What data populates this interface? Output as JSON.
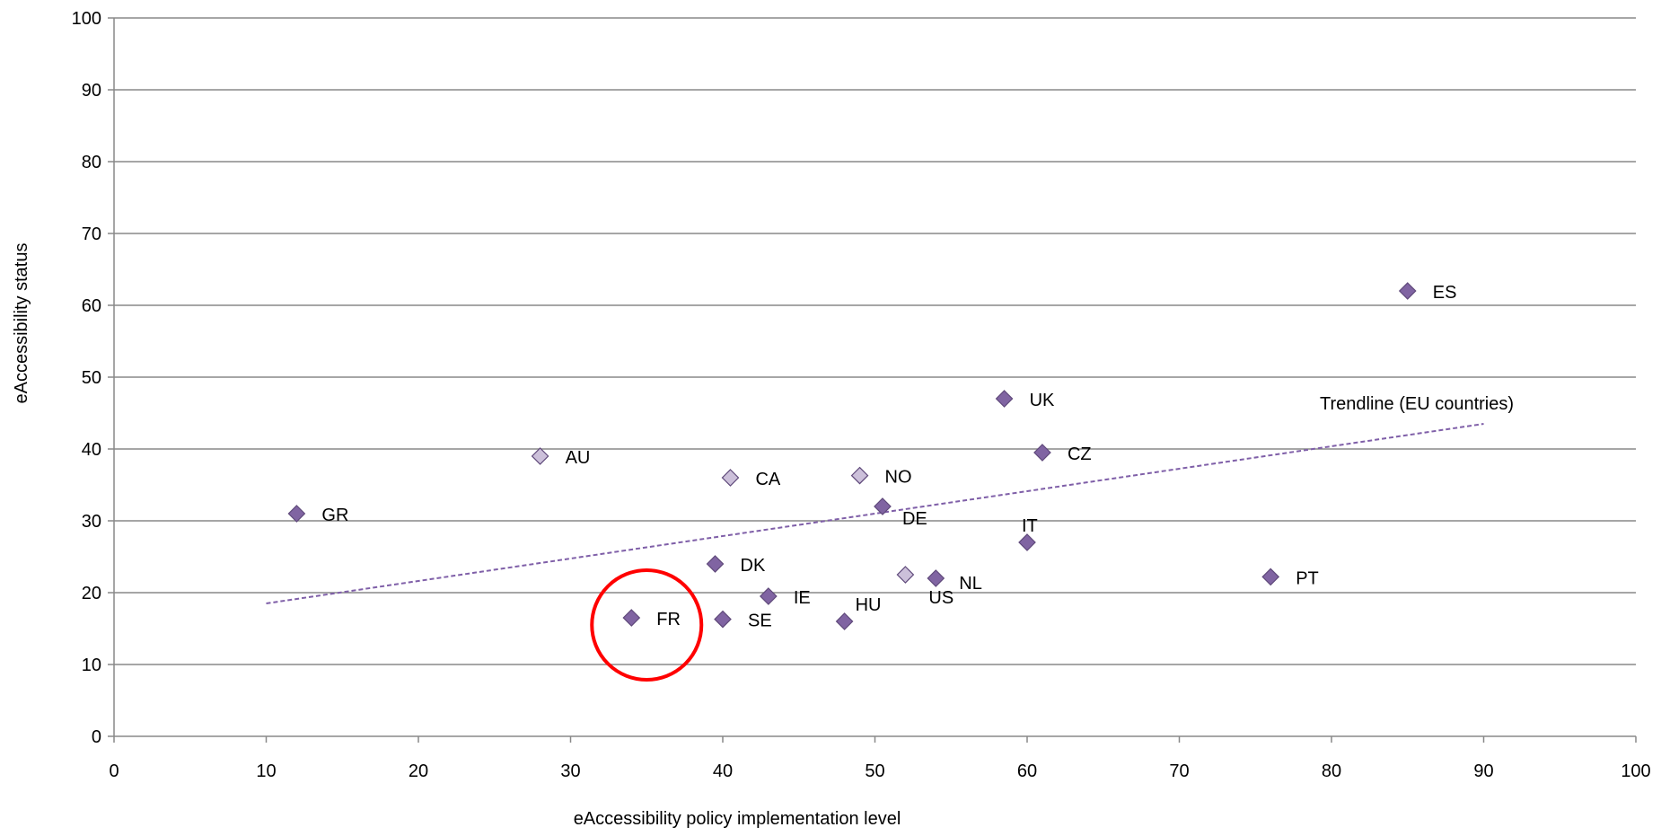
{
  "chart_data": {
    "type": "scatter",
    "title": "",
    "xlabel": "eAccessibility policy implementation  level",
    "ylabel": "eAccessibility status",
    "xlim": [
      0,
      100
    ],
    "ylim": [
      0,
      100
    ],
    "xticks": [
      0,
      10,
      20,
      30,
      40,
      50,
      60,
      70,
      80,
      90,
      100
    ],
    "yticks": [
      0,
      10,
      20,
      30,
      40,
      50,
      60,
      70,
      80,
      90,
      100
    ],
    "grid": "horizontal",
    "colors": {
      "eu": "#8064a2",
      "non_eu": "#ccc0da",
      "marker_edge": "#5f497a",
      "trend": "#7f5fa8",
      "highlight": "#ff0000"
    },
    "series": [
      {
        "group": "eu",
        "points": [
          {
            "label": "GR",
            "x": 12,
            "y": 31
          },
          {
            "label": "FR",
            "x": 34,
            "y": 16.5
          },
          {
            "label": "DK",
            "x": 39.5,
            "y": 24
          },
          {
            "label": "SE",
            "x": 40,
            "y": 16.3
          },
          {
            "label": "IE",
            "x": 43,
            "y": 19.5
          },
          {
            "label": "HU",
            "x": 48,
            "y": 16
          },
          {
            "label": "DE",
            "x": 50.5,
            "y": 32
          },
          {
            "label": "NL",
            "x": 54,
            "y": 22
          },
          {
            "label": "UK",
            "x": 58.5,
            "y": 47
          },
          {
            "label": "IT",
            "x": 60,
            "y": 27
          },
          {
            "label": "CZ",
            "x": 61,
            "y": 39.5
          },
          {
            "label": "PT",
            "x": 76,
            "y": 22.2
          },
          {
            "label": "ES",
            "x": 85,
            "y": 62
          }
        ]
      },
      {
        "group": "non_eu",
        "points": [
          {
            "label": "AU",
            "x": 28,
            "y": 39
          },
          {
            "label": "CA",
            "x": 40.5,
            "y": 36
          },
          {
            "label": "NO",
            "x": 49,
            "y": 36.3
          },
          {
            "label": "US",
            "x": 52,
            "y": 22.5
          }
        ]
      }
    ],
    "trendline": {
      "label": "Trendline (EU countries)",
      "x": [
        10,
        90
      ],
      "y": [
        18.5,
        43.5
      ]
    },
    "highlight": {
      "label": "FR",
      "x": 35,
      "y": 15.5
    }
  }
}
